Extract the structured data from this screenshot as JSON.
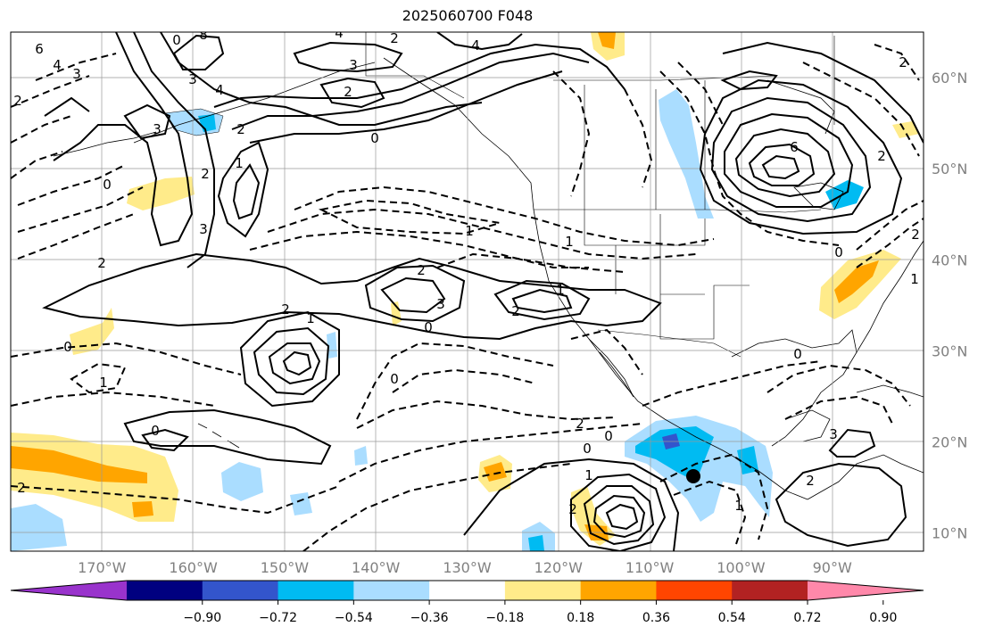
{
  "title": "2025060700 F048",
  "map": {
    "lon_range": [
      -180,
      -80
    ],
    "lat_range": [
      8,
      65
    ],
    "lon_ticks": [
      "170°W",
      "160°W",
      "150°W",
      "140°W",
      "130°W",
      "120°W",
      "110°W",
      "100°W",
      "90°W"
    ],
    "lat_ticks": [
      "60°N",
      "50°N",
      "40°N",
      "30°N",
      "20°N",
      "10°N"
    ],
    "gridlines": true,
    "contour_labels": [
      "6",
      "4",
      "3",
      "2",
      "8",
      "0",
      "4",
      "3",
      "2",
      "4",
      "3",
      "4",
      "2",
      "0",
      "3",
      "2",
      "1",
      "0",
      "2",
      "3",
      "0",
      "1",
      "2",
      "1",
      "2",
      "2",
      "3",
      "0",
      "1",
      "2",
      "0",
      "1",
      "1",
      "0",
      "2",
      "0",
      "1",
      "6",
      "2",
      "2",
      "0",
      "1",
      "2",
      "2",
      "0",
      "3",
      "2",
      "2",
      "0",
      "1"
    ],
    "marker": "storm-center-dot"
  },
  "colorbar": {
    "ticks": [
      "−0.90",
      "−0.72",
      "−0.54",
      "−0.36",
      "−0.18",
      "0.18",
      "0.36",
      "0.54",
      "0.72",
      "0.90"
    ],
    "colors": [
      "#9933cc",
      "#000080",
      "#3355cc",
      "#00bbf2",
      "#aaddff",
      "#ffffff",
      "#ffeb8a",
      "#ffa500",
      "#ff4500",
      "#b22222",
      "#ff88aa"
    ]
  }
}
